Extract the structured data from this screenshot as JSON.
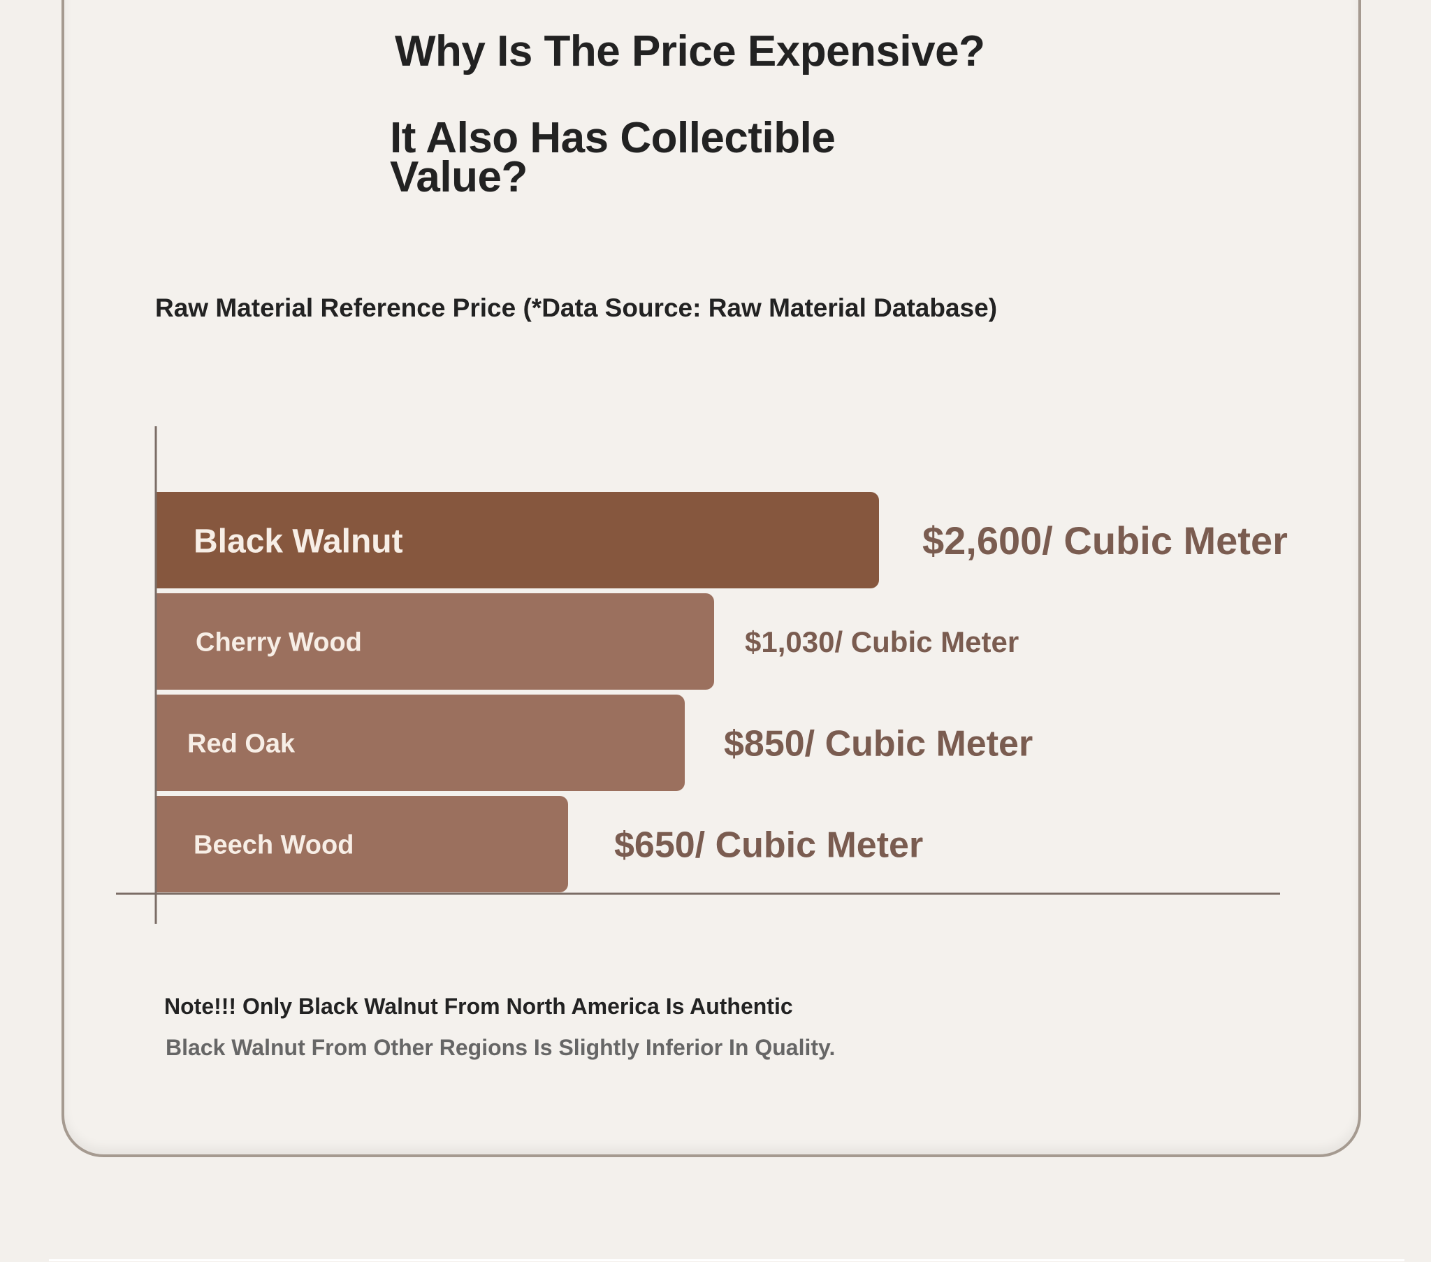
{
  "header": {
    "title": "Why Is The Price Expensive?",
    "subtitle": "It Also Has Collectible Value?"
  },
  "colors": {
    "highlight_bar": "#86573e",
    "bar": "#9b705e",
    "value_text": "#7a5c50",
    "axis": "#7b6d66"
  },
  "chart_data": {
    "type": "bar",
    "orientation": "horizontal",
    "title": "Raw Material Reference Price (*Data Source: Raw Material Database)",
    "categories": [
      "Black Walnut",
      "Cherry Wood",
      "Red Oak",
      "Beech Wood"
    ],
    "values": [
      2600,
      1030,
      850,
      650
    ],
    "value_labels": [
      "$2,600/ Cubic Meter",
      "$1,030/ Cubic Meter",
      "$850/ Cubic Meter",
      "$650/ Cubic Meter"
    ],
    "unit": "$/ Cubic Meter",
    "highlight": "Black Walnut",
    "grid": false,
    "legend": "none"
  },
  "notes": {
    "line1": "Note!!! Only Black Walnut From North America Is Authentic",
    "line2": "Black Walnut From Other Regions Is Slightly Inferior In Quality."
  }
}
